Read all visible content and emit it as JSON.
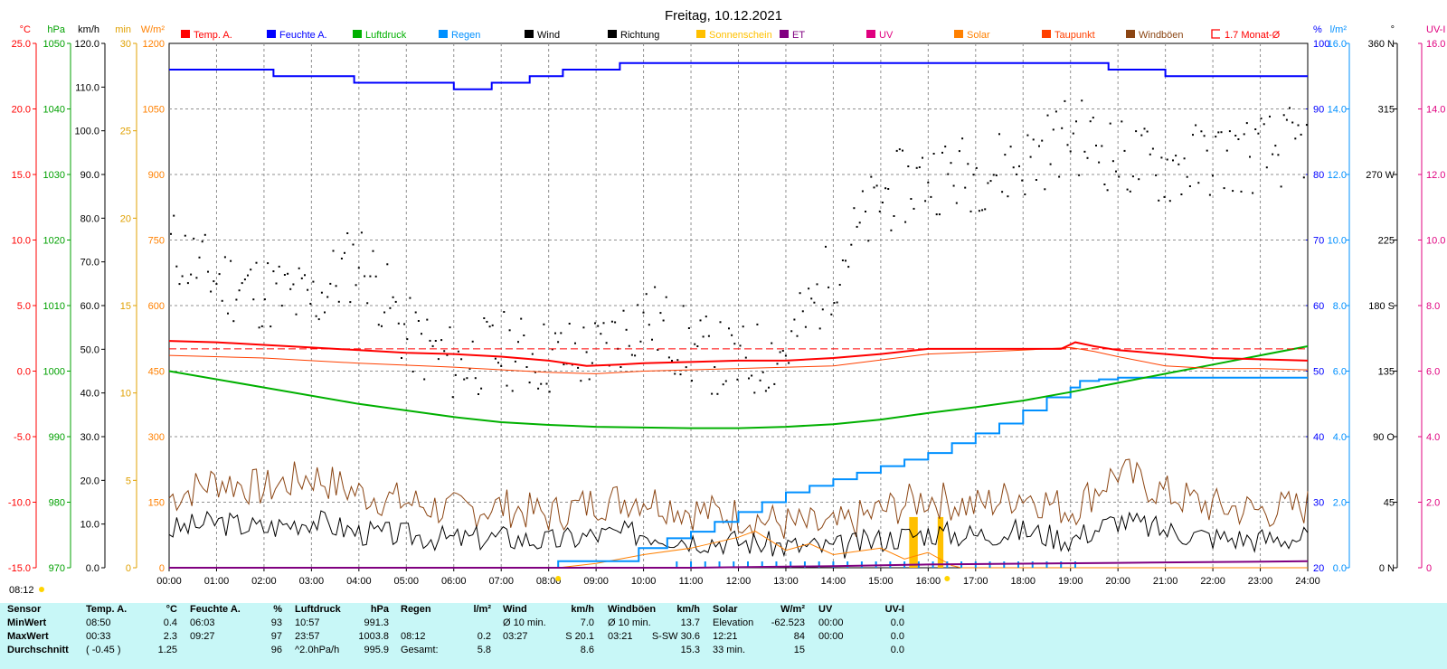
{
  "title": "Freitag, 10.12.2021",
  "legend": [
    {
      "label": "Temp. A.",
      "color": "#ff0000",
      "shape": "box"
    },
    {
      "label": "Feuchte A.",
      "color": "#0000ff",
      "shape": "box"
    },
    {
      "label": "Luftdruck",
      "color": "#00b000",
      "shape": "box"
    },
    {
      "label": "Regen",
      "color": "#0090ff",
      "shape": "box"
    },
    {
      "label": "Wind",
      "color": "#000000",
      "shape": "box"
    },
    {
      "label": "Richtung",
      "color": "#000000",
      "shape": "box"
    },
    {
      "label": "Sonnenschein",
      "color": "#ffc000",
      "shape": "box"
    },
    {
      "label": "ET",
      "color": "#800080",
      "shape": "box"
    },
    {
      "label": "UV",
      "color": "#e0007f",
      "shape": "box"
    },
    {
      "label": "Solar",
      "color": "#ff8000",
      "shape": "box"
    },
    {
      "label": "Taupunkt",
      "color": "#ff4000",
      "shape": "box"
    },
    {
      "label": "Windböen",
      "color": "#8b4513",
      "shape": "box"
    },
    {
      "label": "1.7 Monat-Ø",
      "color": "#ff0000",
      "shape": "bracket"
    }
  ],
  "axes": {
    "temp": {
      "unit": "°C",
      "color": "#ff0000",
      "ticks": [
        "25.0",
        "20.0",
        "15.0",
        "10.0",
        "5.0",
        "0.0",
        "-5.0",
        "-10.0",
        "-15.0"
      ]
    },
    "pressure": {
      "unit": "hPa",
      "color": "#00a000",
      "ticks": [
        "1050",
        "1040",
        "1030",
        "1020",
        "1010",
        "1000",
        "990",
        "980",
        "970"
      ]
    },
    "wind": {
      "unit": "km/h",
      "color": "#000000",
      "ticks": [
        "120.0",
        "110.0",
        "100.0",
        "90.0",
        "80.0",
        "70.0",
        "60.0",
        "50.0",
        "40.0",
        "30.0",
        "20.0",
        "10.0",
        "0.0"
      ]
    },
    "minutes": {
      "unit": "min",
      "color": "#e0a000",
      "ticks": [
        "30",
        "25",
        "20",
        "15",
        "10",
        "5",
        "0"
      ]
    },
    "solar": {
      "unit": "W/m²",
      "color": "#ff8000",
      "ticks": [
        "1200",
        "1050",
        "900",
        "750",
        "600",
        "450",
        "300",
        "150",
        "0"
      ]
    },
    "humidity": {
      "unit": "%",
      "color": "#0000ff",
      "ticks": [
        "100",
        "90",
        "80",
        "70",
        "60",
        "50",
        "40",
        "30",
        "20"
      ]
    },
    "rain": {
      "unit": "l/m²",
      "color": "#0090ff",
      "ticks": [
        "16.0",
        "14.0",
        "12.0",
        "10.0",
        "8.0",
        "6.0",
        "4.0",
        "2.0",
        "0.0"
      ]
    },
    "direction": {
      "unit": "°",
      "color": "#000000",
      "ticks": [
        "360 N",
        "315",
        "270 W",
        "225",
        "180 S",
        "135",
        "90 O",
        "45",
        "0 N"
      ]
    },
    "uv": {
      "unit": "UV-I",
      "color": "#e0007f",
      "ticks": [
        "16.0",
        "14.0",
        "12.0",
        "10.0",
        "8.0",
        "6.0",
        "4.0",
        "2.0",
        "0"
      ]
    },
    "time": {
      "ticks": [
        "00:00",
        "01:00",
        "02:00",
        "03:00",
        "04:00",
        "05:00",
        "06:00",
        "07:00",
        "08:00",
        "09:00",
        "10:00",
        "11:00",
        "12:00",
        "13:00",
        "14:00",
        "15:00",
        "16:00",
        "17:00",
        "18:00",
        "19:00",
        "20:00",
        "21:00",
        "22:00",
        "23:00",
        "24:00"
      ]
    }
  },
  "sunrise_label": "08:12",
  "chart_data": {
    "type": "line",
    "title": "Freitag, 10.12.2021",
    "x_unit": "hours",
    "series": [
      {
        "name": "Temp. A.",
        "unit": "°C",
        "color": "#ff0000",
        "x": [
          0,
          1,
          2,
          3,
          4,
          5,
          6,
          7,
          8,
          8.8,
          9.5,
          10,
          11,
          12,
          13,
          14,
          15,
          16,
          17,
          18,
          18.8,
          19.1,
          19.5,
          20,
          21,
          22,
          23,
          24
        ],
        "y": [
          2.3,
          2.2,
          2.0,
          1.8,
          1.6,
          1.4,
          1.3,
          1.1,
          0.8,
          0.4,
          0.5,
          0.6,
          0.7,
          0.8,
          0.8,
          1.0,
          1.3,
          1.7,
          1.7,
          1.7,
          1.7,
          2.2,
          1.9,
          1.6,
          1.3,
          1.0,
          0.9,
          0.8
        ]
      },
      {
        "name": "Taupunkt",
        "unit": "°C",
        "color": "#ff4000",
        "x": [
          0,
          2,
          4,
          6,
          8,
          9,
          10,
          12,
          14,
          16,
          18,
          19,
          19.5,
          20,
          21,
          22,
          23,
          24
        ],
        "y": [
          1.2,
          1.0,
          0.6,
          0.3,
          -0.1,
          -0.2,
          0.0,
          0.2,
          0.4,
          1.3,
          1.6,
          1.8,
          1.5,
          1.1,
          0.4,
          0.2,
          0.2,
          0.1
        ]
      },
      {
        "name": "1.7 Monat-Ø",
        "unit": "°C",
        "color": "#ff0000",
        "x": [
          0,
          24
        ],
        "y": [
          1.7,
          1.7
        ]
      },
      {
        "name": "Feuchte A.",
        "unit": "%",
        "color": "#0000ff",
        "x": [
          0,
          2.2,
          2.2,
          3.9,
          3.9,
          6.0,
          6.0,
          6.8,
          6.8,
          7.6,
          7.6,
          8.3,
          8.3,
          9.5,
          9.5,
          19.8,
          19.8,
          21.0,
          21.0,
          24
        ],
        "y": [
          96,
          96,
          95,
          95,
          94,
          94,
          93,
          93,
          94,
          94,
          95,
          95,
          96,
          96,
          97,
          97,
          96,
          96,
          95,
          95
        ]
      },
      {
        "name": "Luftdruck",
        "unit": "hPa",
        "color": "#00b000",
        "x": [
          0,
          2,
          4,
          6,
          7,
          8,
          9,
          10,
          11,
          12,
          13,
          14,
          15,
          16,
          17,
          18,
          19,
          20,
          21,
          22,
          23,
          24
        ],
        "y": [
          1000.0,
          997.5,
          995.0,
          993.0,
          992.2,
          991.8,
          991.5,
          991.4,
          991.3,
          991.3,
          991.5,
          991.9,
          992.6,
          993.6,
          994.5,
          995.5,
          996.8,
          998.2,
          999.6,
          1001.0,
          1002.4,
          1003.8
        ]
      },
      {
        "name": "Regen",
        "unit": "l/m²",
        "color": "#0090ff",
        "x": [
          0,
          8.2,
          8.2,
          9.5,
          9.9,
          10.5,
          11.0,
          11.5,
          12.0,
          12.5,
          13.0,
          13.5,
          14.0,
          14.5,
          15.0,
          15.5,
          16.0,
          16.5,
          17.0,
          17.5,
          18.0,
          18.5,
          19.0,
          19.2,
          19.6,
          20.0,
          20.5,
          21.0,
          21.5,
          24
        ],
        "y": [
          0,
          0,
          0.2,
          0.2,
          0.6,
          0.9,
          1.1,
          1.4,
          1.7,
          2.0,
          2.3,
          2.5,
          2.7,
          2.9,
          3.1,
          3.3,
          3.5,
          3.8,
          4.1,
          4.4,
          4.8,
          5.2,
          5.5,
          5.7,
          5.75,
          5.8,
          5.8,
          5.8,
          5.8,
          5.8
        ]
      },
      {
        "name": "Wind",
        "unit": "km/h",
        "color": "#000000",
        "x": [
          0,
          1,
          2,
          3,
          4,
          5,
          6,
          7,
          8,
          9,
          10,
          11,
          12,
          13,
          14,
          15,
          16,
          17,
          18,
          19,
          20,
          21,
          22,
          23,
          24
        ],
        "y": [
          8.6,
          10.5,
          9.0,
          11.0,
          8.0,
          7.5,
          6.5,
          7.0,
          6.0,
          7.5,
          8.0,
          6.5,
          6.0,
          5.0,
          4.5,
          6.5,
          8.0,
          7.5,
          8.5,
          6.5,
          11.0,
          8.5,
          7.0,
          6.5,
          7.0
        ]
      },
      {
        "name": "Windböen",
        "unit": "km/h",
        "color": "#8b4513",
        "x": [
          0,
          1,
          2,
          3,
          4,
          5,
          6,
          7,
          8,
          9,
          10,
          11,
          12,
          13,
          14,
          15,
          16,
          17,
          18,
          19,
          20,
          21,
          22,
          23,
          24
        ],
        "y": [
          16,
          20,
          18,
          21,
          17,
          15,
          13,
          14,
          12,
          15,
          16,
          13,
          12,
          10,
          9,
          13,
          16,
          14,
          17,
          13,
          22,
          17,
          14,
          13,
          14
        ]
      },
      {
        "name": "Richtung",
        "unit": "°",
        "color": "#000000",
        "x": [
          0,
          1,
          2,
          3,
          4,
          5,
          6,
          7,
          8,
          9,
          10,
          11,
          12,
          13,
          14,
          15,
          16,
          17,
          18,
          19,
          20,
          21,
          22,
          23,
          24
        ],
        "y": [
          222,
          198,
          190,
          183,
          215,
          160,
          140,
          150,
          145,
          148,
          175,
          150,
          140,
          150,
          205,
          255,
          270,
          272,
          278,
          300,
          282,
          275,
          282,
          285,
          292
        ]
      },
      {
        "name": "Solar",
        "unit": "W/m²",
        "color": "#ff8000",
        "x": [
          8.2,
          9,
          10,
          11,
          12,
          12.35,
          13,
          13.5,
          14,
          15,
          15.5,
          16,
          16.5,
          16.7,
          24
        ],
        "y": [
          0,
          10,
          30,
          45,
          70,
          84,
          40,
          55,
          30,
          45,
          20,
          35,
          5,
          0,
          0
        ]
      },
      {
        "name": "Sonnenschein",
        "unit": "min",
        "color": "#ffc000",
        "x": [
          15.6,
          15.9,
          16.2,
          16.4
        ],
        "y": [
          2.9,
          2.9,
          2.9,
          2.9
        ]
      },
      {
        "name": "ET",
        "unit": "l/m²",
        "color": "#800080",
        "x": [
          0,
          11,
          14,
          16,
          20,
          24
        ],
        "y": [
          0,
          0,
          0.05,
          0.1,
          0.15,
          0.2
        ]
      },
      {
        "name": "UV",
        "unit": "UV-I",
        "color": "#e0007f",
        "x": [
          0,
          24
        ],
        "y": [
          0,
          0
        ]
      }
    ]
  },
  "stats": {
    "headers": [
      {
        "label": "Sensor"
      },
      {
        "label": "Temp. A.",
        "unit": "°C"
      },
      {
        "label": "Feuchte A.",
        "unit": "%"
      },
      {
        "label": "Luftdruck",
        "unit": "hPa"
      },
      {
        "label": "Regen",
        "unit": "l/m²"
      },
      {
        "label": "Wind",
        "unit": "km/h"
      },
      {
        "label": "Windböen",
        "unit": "km/h"
      },
      {
        "label": "Solar",
        "unit": "W/m²"
      },
      {
        "label": "UV",
        "unit": "UV-I"
      }
    ],
    "rows": [
      {
        "label": "MinWert",
        "cells": [
          [
            "08:50",
            "0.4"
          ],
          [
            "06:03",
            "93"
          ],
          [
            "10:57",
            "991.3"
          ],
          [
            "",
            ""
          ],
          [
            "Ø 10 min.",
            "7.0"
          ],
          [
            "Ø 10 min.",
            "13.7"
          ],
          [
            "Elevation",
            "-62.523"
          ],
          [
            "00:00",
            "0.0"
          ]
        ]
      },
      {
        "label": "MaxWert",
        "cells": [
          [
            "00:33",
            "2.3"
          ],
          [
            "09:27",
            "97"
          ],
          [
            "23:57",
            "1003.8"
          ],
          [
            "08:12",
            "0.2"
          ],
          [
            "03:27",
            "S 20.1"
          ],
          [
            "03:21",
            "S-SW 30.6"
          ],
          [
            "12:21",
            "84"
          ],
          [
            "00:00",
            "0.0"
          ]
        ]
      },
      {
        "label": "Durchschnitt",
        "cells": [
          [
            "( -0.45 )",
            "1.25"
          ],
          [
            "",
            "96"
          ],
          [
            "^2.0hPa/h",
            "995.9"
          ],
          [
            "Gesamt:",
            "5.8"
          ],
          [
            "",
            "8.6"
          ],
          [
            "",
            "15.3"
          ],
          [
            "33 min.",
            "15"
          ],
          [
            "",
            "0.0"
          ]
        ]
      }
    ]
  }
}
